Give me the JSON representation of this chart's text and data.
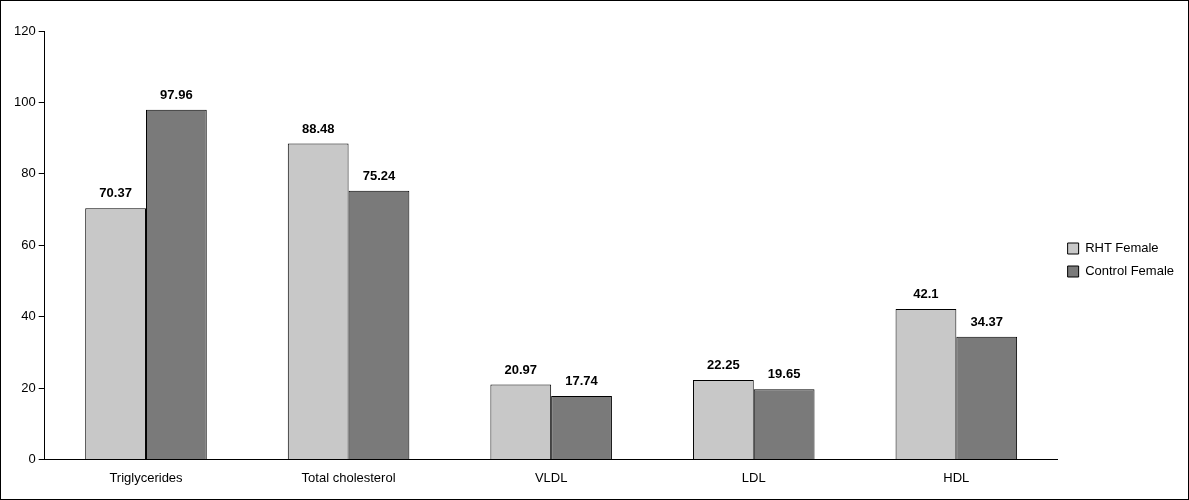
{
  "chart_data": {
    "type": "bar",
    "categories": [
      "Triglycerides",
      "Total cholesterol",
      "VLDL",
      "LDL",
      "HDL"
    ],
    "series": [
      {
        "name": "RHT Female",
        "color": "#c8c8c8",
        "values": [
          70.37,
          88.48,
          20.97,
          22.25,
          42.1
        ]
      },
      {
        "name": "Control Female",
        "color": "#7a7a7a",
        "values": [
          97.96,
          75.24,
          17.74,
          19.65,
          34.37
        ]
      }
    ],
    "ylim": [
      0,
      120
    ],
    "yticks": [
      0,
      20,
      40,
      60,
      80,
      100,
      120
    ],
    "grid": false,
    "legend": "right",
    "data_labels": true
  }
}
